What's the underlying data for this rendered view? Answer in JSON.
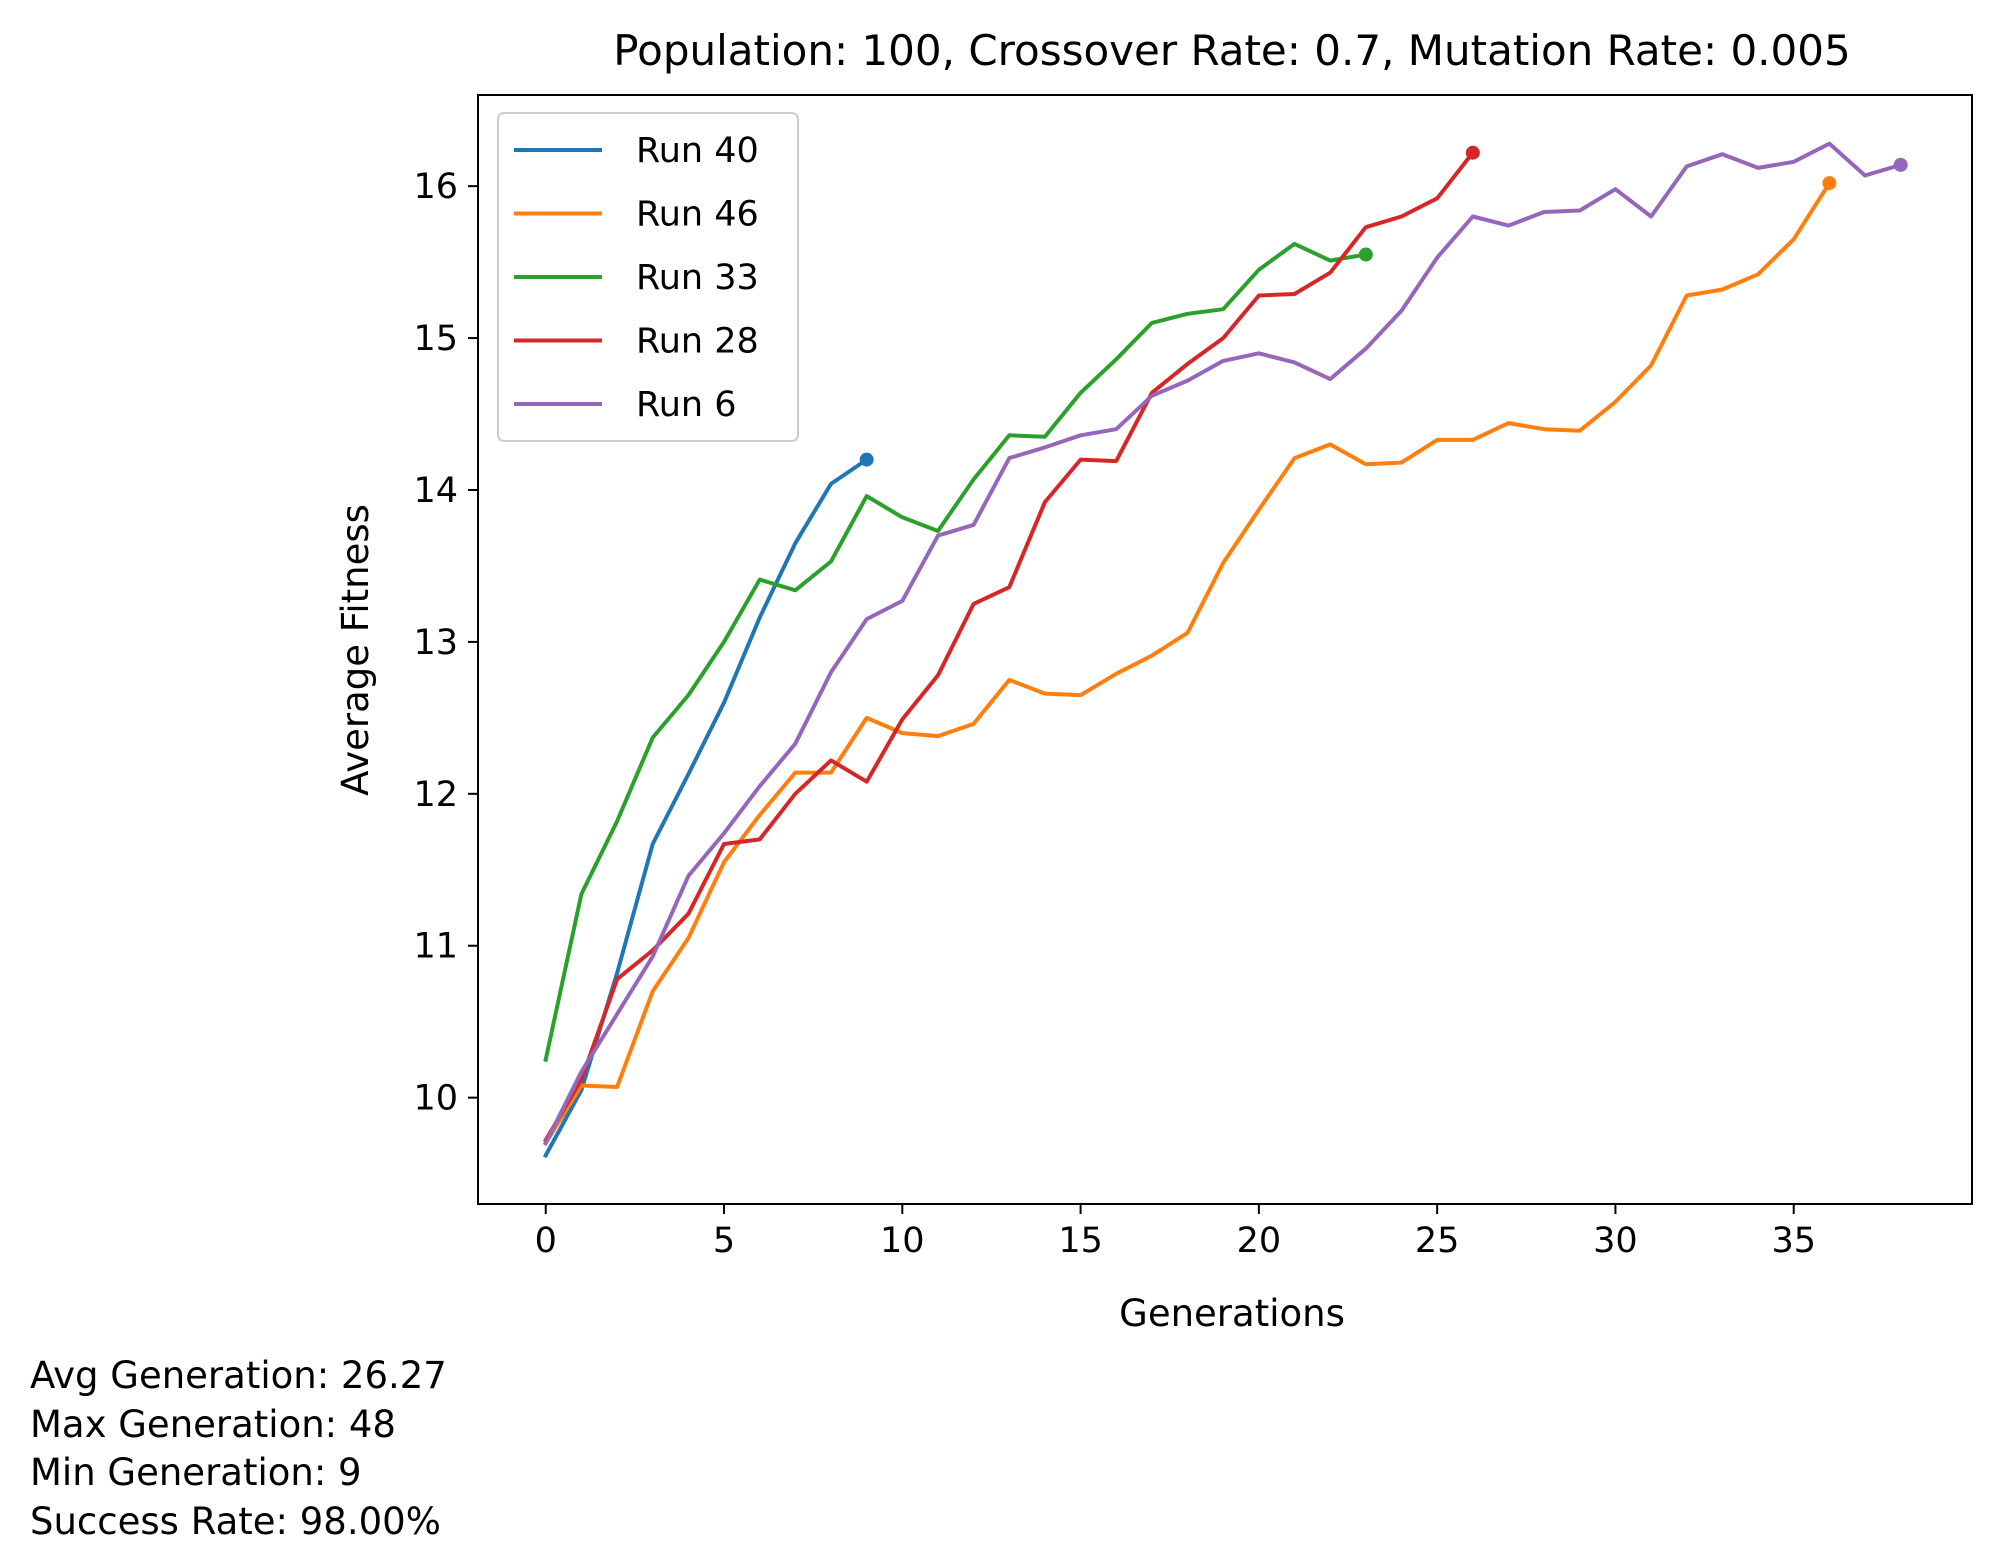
{
  "chart_data": {
    "type": "line",
    "title": "Population: 100, Crossover Rate: 0.7, Mutation Rate: 0.005",
    "xlabel": "Generations",
    "ylabel": "Average Fitness",
    "xlim": [
      -1.9,
      40.0
    ],
    "ylim": [
      9.3,
      16.6
    ],
    "xticks": [
      0,
      5,
      10,
      15,
      20,
      25,
      30,
      35
    ],
    "yticks": [
      10,
      11,
      12,
      13,
      14,
      15,
      16
    ],
    "grid": false,
    "legend_position": "upper-left",
    "end_markers": true,
    "series": [
      {
        "name": "Run 40",
        "color": "#1f77b4",
        "y": [
          9.62,
          10.05,
          10.82,
          11.67,
          12.13,
          12.6,
          13.16,
          13.65,
          14.04,
          14.2
        ]
      },
      {
        "name": "Run 46",
        "color": "#ff7f0e",
        "y": [
          9.7,
          10.08,
          10.07,
          10.7,
          11.05,
          11.55,
          11.86,
          12.14,
          12.14,
          12.5,
          12.4,
          12.38,
          12.46,
          12.75,
          12.66,
          12.65,
          12.79,
          12.91,
          13.06,
          13.52,
          13.87,
          14.21,
          14.3,
          14.17,
          14.18,
          14.33,
          14.33,
          14.44,
          14.4,
          14.39,
          14.58,
          14.82,
          15.28,
          15.32,
          15.42,
          15.65,
          16.02
        ]
      },
      {
        "name": "Run 33",
        "color": "#2ca02c",
        "y": [
          10.25,
          11.34,
          11.82,
          12.37,
          12.65,
          13.0,
          13.41,
          13.34,
          13.53,
          13.96,
          13.82,
          13.73,
          14.07,
          14.36,
          14.35,
          14.64,
          14.86,
          15.1,
          15.16,
          15.19,
          15.45,
          15.62,
          15.51,
          15.55
        ]
      },
      {
        "name": "Run 28",
        "color": "#d62728",
        "y": [
          9.72,
          10.12,
          10.78,
          10.97,
          11.21,
          11.67,
          11.7,
          12.0,
          12.22,
          12.08,
          12.49,
          12.78,
          13.25,
          13.36,
          13.92,
          14.2,
          14.19,
          14.64,
          14.83,
          15.0,
          15.28,
          15.29,
          15.43,
          15.73,
          15.8,
          15.92,
          16.22
        ]
      },
      {
        "name": "Run 6",
        "color": "#9467bd",
        "y": [
          9.7,
          10.17,
          10.55,
          10.93,
          11.46,
          11.74,
          12.05,
          12.33,
          12.8,
          13.15,
          13.27,
          13.7,
          13.77,
          14.21,
          14.28,
          14.36,
          14.4,
          14.62,
          14.72,
          14.85,
          14.9,
          14.84,
          14.73,
          14.93,
          15.18,
          15.53,
          15.8,
          15.74,
          15.83,
          15.84,
          15.98,
          15.8,
          16.13,
          16.21,
          16.12,
          16.16,
          16.28,
          16.07,
          16.14
        ]
      }
    ]
  },
  "stats": {
    "avg_generation": "Avg Generation: 26.27",
    "max_generation": "Max Generation: 48",
    "min_generation": "Min Generation: 9",
    "success_rate": "Success Rate: 98.00%"
  }
}
